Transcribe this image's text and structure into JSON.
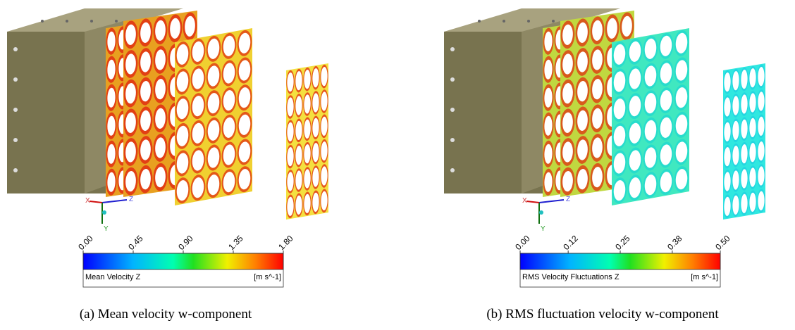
{
  "panels": [
    {
      "colorbar": {
        "ticks": [
          {
            "value": 0,
            "label": "0.00"
          },
          {
            "value": 0.45,
            "label": "0.45"
          },
          {
            "value": 0.9,
            "label": "0.90"
          },
          {
            "value": 1.35,
            "label": "1.35"
          },
          {
            "value": 1.8,
            "label": "1.80"
          }
        ],
        "title": "Mean Velocity Z",
        "unit": "[m s^-1]"
      },
      "triad": {
        "x": "X",
        "y": "Y",
        "z": "Z"
      },
      "caption": "(a) Mean velocity w-component"
    },
    {
      "colorbar": {
        "ticks": [
          {
            "value": 0,
            "label": "0.00"
          },
          {
            "value": 0.12,
            "label": "0.12"
          },
          {
            "value": 0.25,
            "label": "0.25"
          },
          {
            "value": 0.38,
            "label": "0.38"
          },
          {
            "value": 0.5,
            "label": "0.50"
          }
        ],
        "title": "RMS Velocity Fluctuations Z",
        "unit": "[m s^-1]"
      },
      "triad": {
        "x": "X",
        "y": "Y",
        "z": "Z"
      },
      "caption": "(b) RMS fluctuation velocity w-component"
    }
  ]
}
